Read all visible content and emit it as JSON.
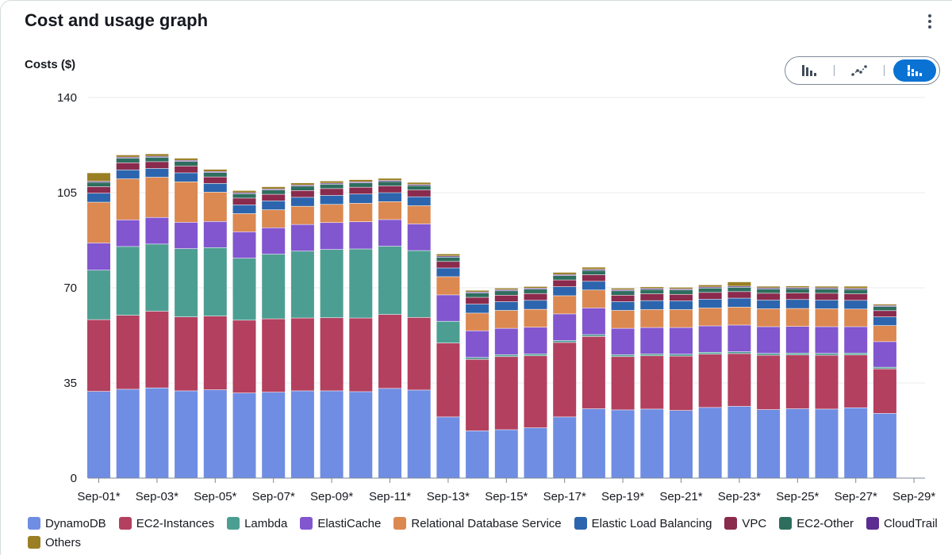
{
  "panel": {
    "title": "Cost and usage graph"
  },
  "toggle": {
    "options": [
      "Bar chart",
      "Line chart",
      "Stacked bar chart"
    ],
    "active": "Stacked bar chart"
  },
  "chart_data": {
    "type": "bar",
    "stacked": true,
    "title": "",
    "ylabel": "Costs ($)",
    "xlabel": "",
    "ylim": [
      0,
      140
    ],
    "yticks": [
      0,
      35,
      70,
      105,
      140
    ],
    "grid": true,
    "legend_position": "bottom",
    "categories": [
      "Sep-01*",
      "Sep-02*",
      "Sep-03*",
      "Sep-04*",
      "Sep-05*",
      "Sep-06*",
      "Sep-07*",
      "Sep-08*",
      "Sep-09*",
      "Sep-10*",
      "Sep-11*",
      "Sep-12*",
      "Sep-13*",
      "Sep-14*",
      "Sep-15*",
      "Sep-16*",
      "Sep-17*",
      "Sep-18*",
      "Sep-19*",
      "Sep-20*",
      "Sep-21*",
      "Sep-22*",
      "Sep-23*",
      "Sep-24*",
      "Sep-25*",
      "Sep-26*",
      "Sep-27*",
      "Sep-28*"
    ],
    "xtick_labels": [
      "Sep-01*",
      "Sep-03*",
      "Sep-05*",
      "Sep-07*",
      "Sep-09*",
      "Sep-11*",
      "Sep-13*",
      "Sep-15*",
      "Sep-17*",
      "Sep-19*",
      "Sep-21*",
      "Sep-23*",
      "Sep-25*",
      "Sep-27*",
      "Sep-29*"
    ],
    "series": [
      {
        "name": "DynamoDB",
        "color": "#6f8de3",
        "values": [
          31.8,
          32.6,
          33.1,
          32.0,
          32.4,
          31.2,
          31.5,
          32.0,
          32.0,
          31.7,
          32.9,
          32.3,
          22.4,
          17.3,
          17.7,
          18.4,
          22.4,
          25.4,
          25.0,
          25.3,
          24.8,
          25.9,
          26.3,
          25.1,
          25.4,
          25.3,
          25.8,
          23.7
        ]
      },
      {
        "name": "EC2-Instances",
        "color": "#b3405f",
        "values": [
          26.4,
          27.2,
          28.2,
          27.2,
          27.1,
          26.8,
          27.0,
          26.8,
          26.9,
          27.1,
          27.2,
          26.7,
          27.2,
          26.3,
          26.9,
          26.5,
          27.4,
          26.6,
          19.6,
          19.6,
          20.0,
          19.6,
          19.4,
          20.0,
          19.8,
          19.8,
          19.4,
          16.4
        ]
      },
      {
        "name": "Lambda",
        "color": "#4d9e92",
        "values": [
          18.2,
          25.3,
          24.7,
          25.1,
          25.2,
          22.8,
          23.8,
          24.6,
          25.1,
          25.4,
          25.1,
          24.6,
          8.0,
          0.7,
          0.7,
          0.7,
          0.7,
          0.7,
          0.7,
          0.7,
          0.7,
          0.7,
          0.7,
          0.7,
          0.7,
          0.7,
          0.7,
          0.6
        ]
      },
      {
        "name": "ElastiCache",
        "color": "#8156cf",
        "values": [
          10.0,
          9.8,
          9.8,
          9.7,
          9.6,
          9.7,
          9.7,
          9.8,
          9.9,
          10.0,
          9.8,
          9.8,
          9.7,
          9.8,
          9.7,
          9.8,
          9.8,
          9.8,
          9.7,
          9.7,
          9.8,
          9.7,
          9.8,
          9.8,
          9.8,
          9.8,
          9.7,
          9.4
        ]
      },
      {
        "name": "Relational Database Service",
        "color": "#dc8851",
        "values": [
          15.0,
          15.1,
          14.8,
          14.9,
          10.8,
          6.7,
          6.6,
          6.7,
          6.7,
          6.8,
          6.6,
          6.7,
          6.7,
          6.5,
          6.6,
          6.6,
          6.7,
          6.6,
          6.6,
          6.6,
          6.6,
          6.6,
          6.6,
          6.6,
          6.6,
          6.6,
          6.5,
          5.9
        ]
      },
      {
        "name": "Elastic Load Balancing",
        "color": "#2c65ad",
        "values": [
          3.3,
          3.3,
          3.2,
          3.3,
          3.2,
          3.2,
          3.3,
          3.3,
          3.3,
          3.4,
          3.3,
          3.3,
          3.2,
          3.3,
          3.2,
          3.3,
          3.3,
          3.2,
          3.2,
          3.3,
          3.2,
          3.2,
          3.3,
          3.2,
          3.3,
          3.2,
          3.2,
          3.2
        ]
      },
      {
        "name": "VPC",
        "color": "#8a2a4d",
        "values": [
          2.4,
          2.6,
          2.5,
          2.5,
          2.4,
          2.5,
          2.4,
          2.5,
          2.5,
          2.5,
          2.5,
          2.5,
          2.4,
          2.5,
          2.4,
          2.5,
          2.5,
          2.4,
          2.4,
          2.5,
          2.4,
          2.5,
          2.4,
          2.5,
          2.4,
          2.5,
          2.4,
          2.3
        ]
      },
      {
        "name": "EC2-Other",
        "color": "#2e6e5e",
        "values": [
          1.6,
          1.7,
          1.6,
          1.7,
          1.6,
          1.6,
          1.6,
          1.6,
          1.6,
          1.6,
          1.6,
          1.6,
          1.6,
          1.6,
          1.6,
          1.6,
          1.6,
          1.6,
          1.6,
          1.6,
          1.6,
          1.6,
          1.6,
          1.6,
          1.6,
          1.6,
          1.6,
          1.5
        ]
      },
      {
        "name": "CloudTrail",
        "color": "#5b2d91",
        "values": [
          0.4,
          0.4,
          0.4,
          0.4,
          0.4,
          0.4,
          0.4,
          0.4,
          0.4,
          0.4,
          0.4,
          0.4,
          0.4,
          0.4,
          0.4,
          0.4,
          0.4,
          0.4,
          0.4,
          0.4,
          0.4,
          0.4,
          0.4,
          0.4,
          0.4,
          0.4,
          0.4,
          0.4
        ]
      },
      {
        "name": "Others",
        "color": "#9a7f24",
        "values": [
          3.1,
          0.8,
          0.9,
          0.8,
          0.8,
          0.8,
          0.8,
          0.8,
          0.8,
          0.8,
          0.8,
          0.8,
          0.8,
          0.6,
          0.6,
          0.6,
          0.8,
          0.8,
          0.6,
          0.6,
          0.6,
          0.8,
          1.6,
          0.6,
          0.6,
          0.6,
          0.8,
          0.5
        ]
      }
    ]
  }
}
